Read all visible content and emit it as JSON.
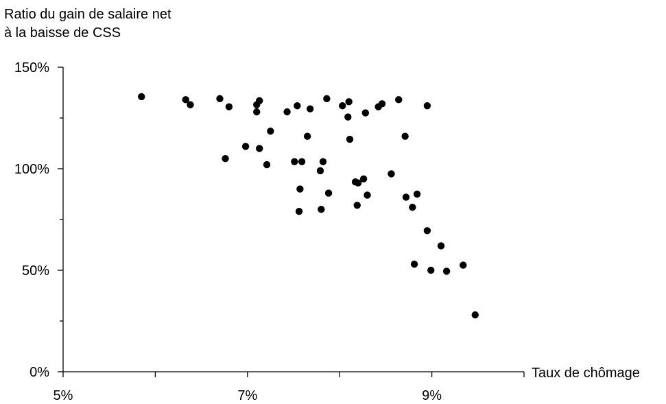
{
  "chart_data": {
    "type": "scatter",
    "ylabel_lines": [
      "Ratio du gain de salaire net",
      "à la baisse de CSS"
    ],
    "xlabel": "Taux de chômage",
    "xlim": [
      5,
      10
    ],
    "ylim": [
      0,
      150
    ],
    "x_ticks": [
      5,
      7,
      9
    ],
    "x_tick_labels": [
      "5%",
      "7%",
      "9%"
    ],
    "x_minor_ticks": [
      6,
      8,
      10
    ],
    "y_ticks": [
      0,
      50,
      100,
      150
    ],
    "y_tick_labels": [
      "0%",
      "50%",
      "100%",
      "150%"
    ],
    "y_minor_ticks": [
      25,
      75,
      125
    ],
    "grid": false,
    "marker_color": "#000000",
    "points": [
      {
        "x": 5.85,
        "y": 135.5
      },
      {
        "x": 6.33,
        "y": 134
      },
      {
        "x": 6.38,
        "y": 131.5
      },
      {
        "x": 6.7,
        "y": 134.5
      },
      {
        "x": 6.8,
        "y": 130.5
      },
      {
        "x": 6.76,
        "y": 105
      },
      {
        "x": 6.98,
        "y": 111
      },
      {
        "x": 7.1,
        "y": 128
      },
      {
        "x": 7.1,
        "y": 131.5
      },
      {
        "x": 7.13,
        "y": 133.5
      },
      {
        "x": 7.13,
        "y": 110
      },
      {
        "x": 7.21,
        "y": 102
      },
      {
        "x": 7.25,
        "y": 118.5
      },
      {
        "x": 7.43,
        "y": 128
      },
      {
        "x": 7.51,
        "y": 103.5
      },
      {
        "x": 7.54,
        "y": 131
      },
      {
        "x": 7.56,
        "y": 79
      },
      {
        "x": 7.57,
        "y": 90
      },
      {
        "x": 7.59,
        "y": 103.5
      },
      {
        "x": 7.65,
        "y": 116
      },
      {
        "x": 7.68,
        "y": 129.5
      },
      {
        "x": 7.79,
        "y": 99
      },
      {
        "x": 7.8,
        "y": 80
      },
      {
        "x": 7.82,
        "y": 103.5
      },
      {
        "x": 7.86,
        "y": 134.5
      },
      {
        "x": 7.88,
        "y": 88
      },
      {
        "x": 8.03,
        "y": 131
      },
      {
        "x": 8.09,
        "y": 125.5
      },
      {
        "x": 8.1,
        "y": 133
      },
      {
        "x": 8.11,
        "y": 114.5
      },
      {
        "x": 8.17,
        "y": 93.5
      },
      {
        "x": 8.19,
        "y": 82
      },
      {
        "x": 8.2,
        "y": 93
      },
      {
        "x": 8.26,
        "y": 95
      },
      {
        "x": 8.28,
        "y": 127.5
      },
      {
        "x": 8.3,
        "y": 87
      },
      {
        "x": 8.42,
        "y": 130.5
      },
      {
        "x": 8.46,
        "y": 132
      },
      {
        "x": 8.56,
        "y": 97.5
      },
      {
        "x": 8.64,
        "y": 134
      },
      {
        "x": 8.71,
        "y": 116
      },
      {
        "x": 8.72,
        "y": 86
      },
      {
        "x": 8.79,
        "y": 81
      },
      {
        "x": 8.81,
        "y": 53
      },
      {
        "x": 8.84,
        "y": 87.5
      },
      {
        "x": 8.95,
        "y": 131
      },
      {
        "x": 8.95,
        "y": 69.5
      },
      {
        "x": 8.99,
        "y": 50
      },
      {
        "x": 9.1,
        "y": 62
      },
      {
        "x": 9.16,
        "y": 49.5
      },
      {
        "x": 9.34,
        "y": 52.5
      },
      {
        "x": 9.47,
        "y": 28
      }
    ]
  }
}
